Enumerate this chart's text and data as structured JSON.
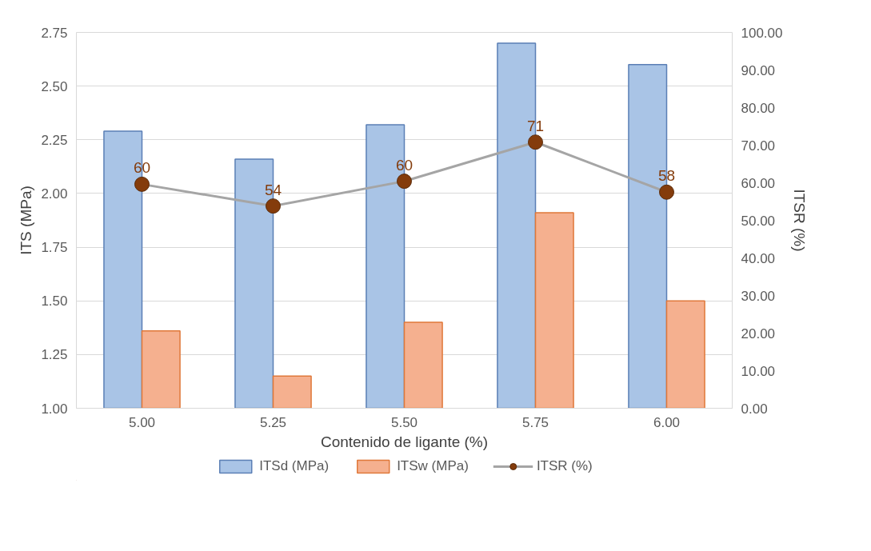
{
  "chart_data": {
    "type": "bar",
    "xlabel": "Contenido de ligante (%)",
    "ylabel": "ITS (MPa)",
    "y2label": "ITSR (%)",
    "categories": [
      "5.00",
      "5.25",
      "5.50",
      "5.75",
      "6.00"
    ],
    "series": [
      {
        "name": "ITSd (MPa)",
        "color": "#a9c4e6",
        "values": [
          2.29,
          2.16,
          2.32,
          2.7,
          2.6
        ]
      },
      {
        "name": "ITSw (MPa)",
        "color": "#f5b08f",
        "values": [
          1.36,
          1.15,
          1.4,
          1.91,
          1.5
        ]
      },
      {
        "name": "ITSR (%)",
        "type": "line",
        "axis": "y2",
        "color": "#a5a5a5",
        "marker": "circle",
        "values": [
          59.6,
          53.8,
          60.4,
          70.8,
          57.5
        ],
        "value_labels": [
          "60",
          "54",
          "60",
          "71",
          "58"
        ]
      }
    ],
    "ylim": [
      1.0,
      2.75
    ],
    "yticks": [
      {
        "value": 1,
        "label": "1.00"
      },
      {
        "value": 1.25,
        "label": "1.25"
      },
      {
        "value": 1.5,
        "label": "1.50"
      },
      {
        "value": 1.75,
        "label": "1.75"
      },
      {
        "value": 2,
        "label": "2.00"
      },
      {
        "value": 2.25,
        "label": "2.25"
      },
      {
        "value": 2.5,
        "label": "2.50"
      },
      {
        "value": 2.75,
        "label": "2.75"
      }
    ],
    "y2lim": [
      0,
      100
    ],
    "y2ticks": [
      {
        "value": 0,
        "label": "0.00"
      },
      {
        "value": 10,
        "label": "10.00"
      },
      {
        "value": 20,
        "label": "20.00"
      },
      {
        "value": 30,
        "label": "30.00"
      },
      {
        "value": 40,
        "label": "40.00"
      },
      {
        "value": 50,
        "label": "50.00"
      },
      {
        "value": 60,
        "label": "60.00"
      },
      {
        "value": 70,
        "label": "70.00"
      },
      {
        "value": 80,
        "label": "80.00"
      },
      {
        "value": 90,
        "label": "90.00"
      },
      {
        "value": 100,
        "label": "100.00"
      }
    ],
    "grid": "y",
    "legend": "bottom"
  }
}
